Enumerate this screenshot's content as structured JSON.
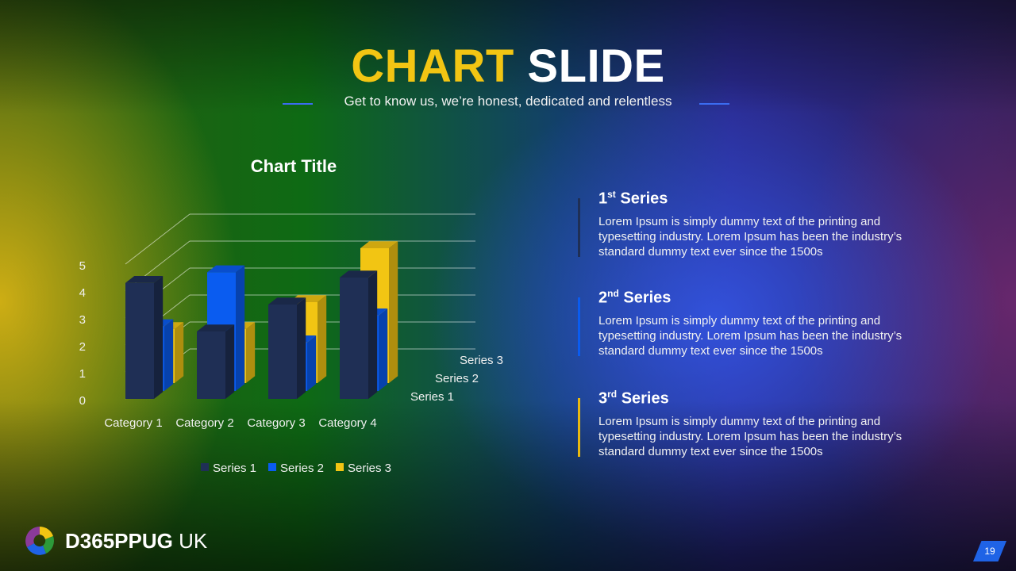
{
  "slide": {
    "title_part1": "CHART",
    "title_part2": "SLIDE",
    "subtitle": "Get to know us, we’re honest, dedicated and relentless",
    "page_number": "19"
  },
  "series_descriptions": [
    {
      "num": "1",
      "sup": "st",
      "label": "Series",
      "color": "#1f2f55",
      "text": "Lorem Ipsum is simply dummy text of the printing and typesetting industry. Lorem Ipsum has been the industry’s standard dummy text ever since the 1500s"
    },
    {
      "num": "2",
      "sup": "nd",
      "label": "Series",
      "color": "#0a5cf0",
      "text": "Lorem Ipsum is simply dummy text of the printing and typesetting industry. Lorem Ipsum has been the industry’s standard dummy text ever since the 1500s"
    },
    {
      "num": "3",
      "sup": "rd",
      "label": "Series",
      "color": "#e9b90f",
      "text": "Lorem Ipsum is simply dummy text of the printing and typesetting industry. Lorem Ipsum has been the industry’s standard dummy text ever since the 1500s"
    }
  ],
  "brand": {
    "bold": "D365PPUG",
    "light": "UK"
  },
  "chart_data": {
    "type": "bar",
    "variant": "3d-column",
    "title": "Chart Title",
    "categories": [
      "Category 1",
      "Category 2",
      "Category 3",
      "Category 4"
    ],
    "series": [
      {
        "name": "Series 1",
        "values": [
          4.3,
          2.5,
          3.5,
          4.5
        ],
        "color": "#1f2f55"
      },
      {
        "name": "Series 2",
        "values": [
          2.4,
          4.4,
          1.8,
          2.8
        ],
        "color": "#0a5cf0"
      },
      {
        "name": "Series 3",
        "values": [
          2.0,
          2.0,
          3.0,
          5.0
        ],
        "color": "#f2c513"
      }
    ],
    "yticks": [
      0,
      1,
      2,
      3,
      4,
      5
    ],
    "ylim": [
      0,
      5
    ],
    "legend": "bottom",
    "grid": true
  }
}
